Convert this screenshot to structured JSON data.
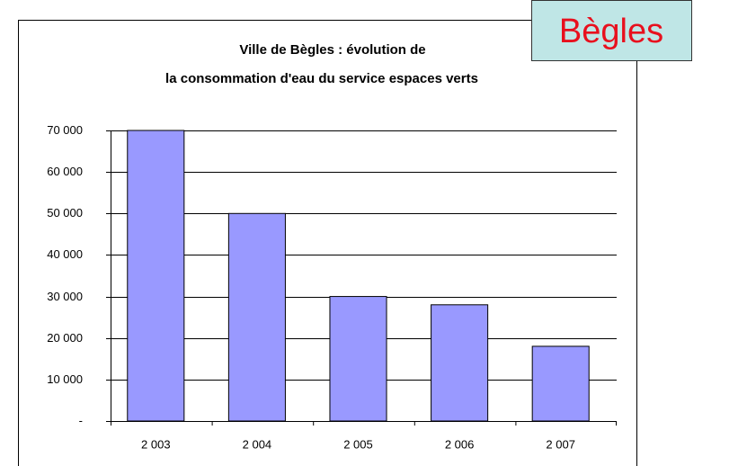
{
  "chart_data": {
    "type": "bar",
    "title": [
      "Ville de Bègles : évolution de",
      "la consommation d'eau du service espaces verts"
    ],
    "annotation": "Bègles",
    "categories": [
      "2 003",
      "2 004",
      "2 005",
      "2 006",
      "2 007"
    ],
    "values": [
      70000,
      50000,
      30000,
      28000,
      18000
    ],
    "color": "#9999ff",
    "ylim": [
      0,
      70000
    ],
    "yticks": [
      {
        "value": 0,
        "label": "-"
      },
      {
        "value": 10000,
        "label": "10 000"
      },
      {
        "value": 20000,
        "label": "20 000"
      },
      {
        "value": 30000,
        "label": "30 000"
      },
      {
        "value": 40000,
        "label": "40 000"
      },
      {
        "value": 50000,
        "label": "50 000"
      },
      {
        "value": 60000,
        "label": "60 000"
      },
      {
        "value": 70000,
        "label": "70 000"
      }
    ],
    "grid": true
  }
}
